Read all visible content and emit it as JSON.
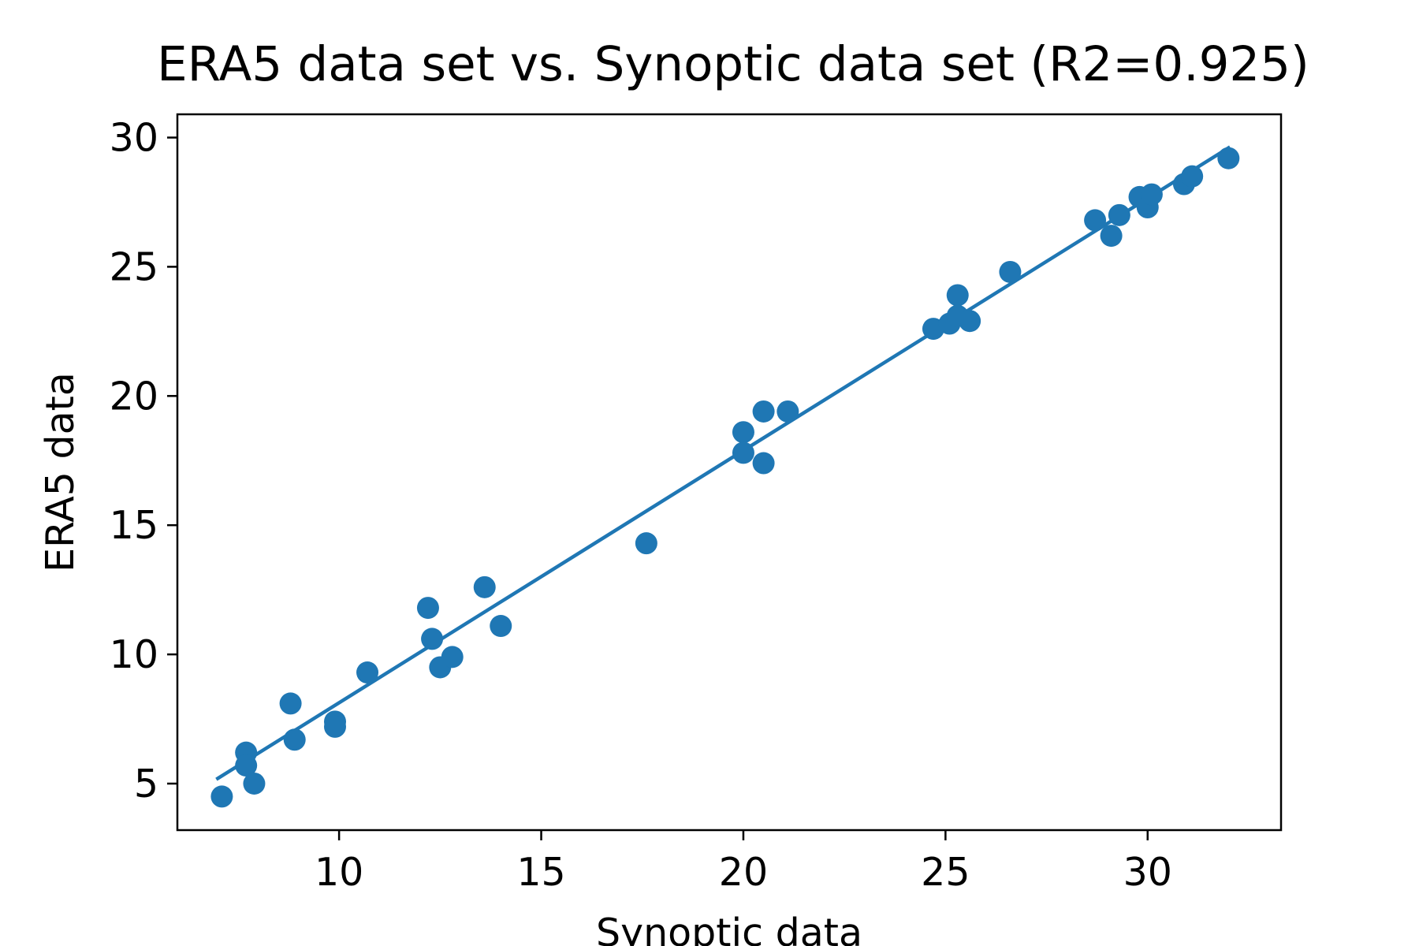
{
  "chart_data": {
    "type": "scatter",
    "title": "ERA5 data set vs. Synoptic data set (R2=0.925)",
    "xlabel": "Synoptic data",
    "ylabel": "ERA5 data",
    "xlim": [
      6.0,
      33.3
    ],
    "ylim": [
      3.2,
      30.9
    ],
    "xticks": [
      10,
      15,
      20,
      25,
      30
    ],
    "yticks": [
      5,
      10,
      15,
      20,
      25,
      30
    ],
    "grid": false,
    "color": "#1f77b4",
    "series": [
      {
        "points": [
          [
            7.1,
            4.5
          ],
          [
            7.7,
            6.2
          ],
          [
            7.7,
            5.7
          ],
          [
            7.9,
            5.0
          ],
          [
            8.8,
            8.1
          ],
          [
            8.9,
            6.7
          ],
          [
            9.9,
            7.4
          ],
          [
            9.9,
            7.2
          ],
          [
            10.7,
            9.3
          ],
          [
            12.2,
            11.8
          ],
          [
            12.3,
            10.6
          ],
          [
            12.5,
            9.5
          ],
          [
            12.8,
            9.9
          ],
          [
            13.6,
            12.6
          ],
          [
            14.0,
            11.1
          ],
          [
            17.6,
            14.3
          ],
          [
            20.0,
            18.6
          ],
          [
            20.0,
            17.8
          ],
          [
            20.5,
            19.4
          ],
          [
            20.5,
            17.4
          ],
          [
            21.1,
            19.4
          ],
          [
            24.7,
            22.6
          ],
          [
            25.1,
            22.8
          ],
          [
            25.3,
            23.9
          ],
          [
            25.3,
            23.1
          ],
          [
            25.6,
            22.9
          ],
          [
            26.6,
            24.8
          ],
          [
            28.7,
            26.8
          ],
          [
            29.1,
            26.2
          ],
          [
            29.3,
            27.0
          ],
          [
            29.8,
            27.7
          ],
          [
            30.0,
            27.3
          ],
          [
            30.1,
            27.8
          ],
          [
            30.9,
            28.2
          ],
          [
            31.1,
            28.5
          ],
          [
            32.0,
            29.2
          ]
        ]
      }
    ],
    "fit_line": {
      "x": [
        7.0,
        32.0
      ],
      "y": [
        5.2,
        29.6
      ]
    }
  }
}
